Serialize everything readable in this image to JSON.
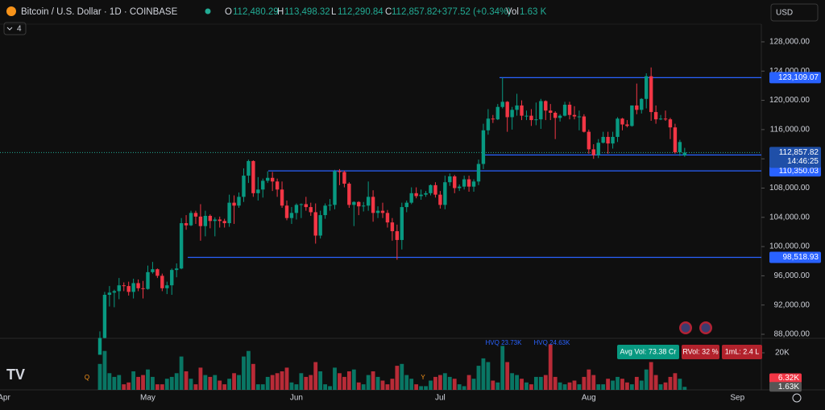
{
  "header": {
    "title": "Bitcoin / U.S. Dollar · 1D · COINBASE",
    "ohlc": [
      {
        "key": "O",
        "value": "112,480.29"
      },
      {
        "key": "H",
        "value": "113,498.32"
      },
      {
        "key": "L",
        "value": "112,290.84"
      },
      {
        "key": "C",
        "value": "112,857.82"
      }
    ],
    "change": "+377.52 (+0.34%)",
    "vol_key": "Vol",
    "vol": "1.63 K",
    "currency": "USD",
    "indicators": "4"
  },
  "badges": [
    "Avg Vol: 73.38 Cr",
    "RVol: 32 %",
    "1mL: 2.4 L"
  ],
  "annotations": [
    "HVQ 23.73K",
    "HVQ 24.63K",
    "Q",
    "Y"
  ],
  "chart_data": {
    "type": "candlestick",
    "up_color": "#089981",
    "down_color": "#f23645",
    "xlim": [
      -20.84,
      138
    ],
    "xticks": [
      {
        "value": -20,
        "label": "Apr"
      },
      {
        "value": 10,
        "label": "May"
      },
      {
        "value": 41,
        "label": "Jun"
      },
      {
        "value": 71,
        "label": "Jul"
      },
      {
        "value": 102,
        "label": "Aug"
      },
      {
        "value": 133,
        "label": "Sep"
      }
    ],
    "ylim": [
      87450,
      130420
    ],
    "yticks": [
      {
        "value": 128000,
        "label": "128,000.00"
      },
      {
        "value": 124000,
        "label": "124,000.00"
      },
      {
        "value": 120000,
        "label": "120,000.00"
      },
      {
        "value": 116000,
        "label": "116,000.00"
      },
      {
        "value": 112000,
        "label": "112,000.00"
      },
      {
        "value": 108000,
        "label": "108,000.00"
      },
      {
        "value": 104000,
        "label": "104,000.00"
      },
      {
        "value": 100000,
        "label": "100,000.00"
      },
      {
        "value": 96000,
        "label": "96,000.00"
      },
      {
        "value": 92000,
        "label": "92,000.00"
      },
      {
        "value": 88000,
        "label": "88,000.00"
      }
    ],
    "levels": [
      {
        "value": 123109.07,
        "label": "123,109.07"
      },
      {
        "value": 110350.03,
        "label": "110,350.03"
      },
      {
        "value": 98518.93,
        "label": "98,518.93"
      }
    ],
    "last_price": {
      "value": 112857.82,
      "label": "112,857.82",
      "countdown": "14:46:25"
    },
    "open": [
      85200,
      87500,
      93400,
      93700,
      93900,
      94700,
      94600,
      93800,
      95000,
      94300,
      94200,
      96500,
      96900,
      96000,
      94300,
      94700,
      96800,
      97000,
      103200,
      102900,
      104600,
      104100,
      102800,
      104200,
      103500,
      103700,
      103500,
      103200,
      106000,
      105600,
      106800,
      109700,
      111700,
      107300,
      107800,
      109000,
      109400,
      108900,
      107800,
      105600,
      103900,
      104600,
      105700,
      105800,
      105400,
      104700,
      101500,
      104300,
      105600,
      105700,
      110300,
      110200,
      108600,
      105700,
      106100,
      105500,
      105600,
      106800,
      104600,
      104900,
      104600,
      103300,
      102100,
      100900,
      105400,
      106000,
      107300,
      106900,
      107100,
      107300,
      108400,
      107100,
      105700,
      108800,
      109600,
      108000,
      108200,
      109200,
      108200,
      108900,
      111300,
      115900,
      117500,
      117400,
      119100,
      119800,
      117700,
      118700,
      119300,
      117900,
      117900,
      117300,
      117400,
      119900,
      118600,
      118300,
      117600,
      117900,
      119400,
      118000,
      117800,
      117800,
      115700,
      113300,
      112500,
      114200,
      115000,
      114100,
      115000,
      117500,
      116700,
      116500,
      119300,
      118700,
      120200,
      123300,
      118400,
      117400,
      117500,
      117400,
      116300,
      112900,
      112480.29
    ],
    "high": [
      88400,
      93800,
      94600,
      94100,
      95700,
      95100,
      95200,
      95600,
      95500,
      95300,
      97400,
      97900,
      97000,
      96300,
      95200,
      97000,
      97700,
      103900,
      104300,
      104900,
      104900,
      105800,
      104900,
      104400,
      104000,
      104100,
      103800,
      107100,
      107000,
      107400,
      110700,
      111900,
      111800,
      109500,
      109300,
      110300,
      110200,
      109300,
      108900,
      106300,
      105400,
      105900,
      105900,
      106800,
      106000,
      105900,
      104900,
      105900,
      106500,
      110500,
      110600,
      110400,
      108800,
      106200,
      106200,
      106100,
      108900,
      107700,
      105500,
      106000,
      105000,
      103900,
      103000,
      106000,
      106300,
      108100,
      108100,
      107800,
      107600,
      108500,
      108800,
      107600,
      109700,
      110000,
      109800,
      108500,
      109700,
      109700,
      109200,
      111900,
      116800,
      118800,
      118000,
      119500,
      123100,
      119900,
      119100,
      120900,
      120000,
      118600,
      118800,
      119700,
      120200,
      120000,
      119500,
      118500,
      118100,
      119800,
      119800,
      119200,
      118600,
      118100,
      116000,
      114000,
      114700,
      115700,
      115700,
      115700,
      117700,
      117600,
      117300,
      119300,
      122300,
      120300,
      123700,
      124500,
      119300,
      118000,
      118600,
      117600,
      116800,
      114600,
      113498.32
    ],
    "low": [
      85000,
      87100,
      91800,
      91700,
      92800,
      93900,
      93300,
      92900,
      93900,
      92900,
      94100,
      96300,
      95700,
      93900,
      93500,
      93400,
      95800,
      96900,
      102300,
      102800,
      103100,
      100800,
      101400,
      102500,
      101400,
      102600,
      102600,
      102700,
      103100,
      105300,
      106100,
      108700,
      106800,
      106300,
      106700,
      108700,
      107600,
      106800,
      105300,
      103600,
      103100,
      103700,
      103900,
      104900,
      104200,
      100400,
      101100,
      103800,
      104900,
      105100,
      108400,
      108100,
      105300,
      102800,
      104300,
      104800,
      104900,
      103400,
      103900,
      103900,
      102600,
      100800,
      98200,
      99600,
      104700,
      105800,
      106600,
      106400,
      106800,
      107000,
      106700,
      105200,
      105100,
      108300,
      107300,
      107600,
      107800,
      107500,
      107500,
      108400,
      110600,
      115300,
      116900,
      117300,
      118900,
      115700,
      116000,
      117900,
      117300,
      117300,
      116500,
      116600,
      116100,
      117300,
      117300,
      114700,
      117100,
      117800,
      117400,
      117400,
      115900,
      115600,
      112700,
      112000,
      112100,
      114100,
      112700,
      113400,
      114300,
      115900,
      116300,
      116400,
      118100,
      118200,
      118900,
      117200,
      116800,
      117300,
      117200,
      114700,
      112700,
      112400,
      112290.84
    ],
    "close": [
      87500,
      93400,
      93700,
      93900,
      94700,
      94600,
      93800,
      95000,
      94300,
      94200,
      96500,
      96900,
      96000,
      94300,
      94700,
      96800,
      97000,
      103200,
      102900,
      104600,
      104100,
      102800,
      104200,
      103500,
      103700,
      103500,
      103200,
      106000,
      105600,
      106800,
      109700,
      111700,
      107300,
      107800,
      109000,
      109400,
      108900,
      107800,
      105600,
      103900,
      104600,
      105700,
      105800,
      105400,
      104700,
      101500,
      104300,
      105600,
      105700,
      110300,
      110200,
      108600,
      105700,
      106100,
      105500,
      105600,
      106800,
      104600,
      104900,
      104600,
      103300,
      102100,
      100900,
      105400,
      106000,
      107300,
      106900,
      107100,
      107300,
      108400,
      107100,
      105700,
      108800,
      109600,
      108000,
      108200,
      109200,
      108200,
      108900,
      111300,
      115900,
      117500,
      117400,
      119100,
      119800,
      117700,
      118700,
      119300,
      117900,
      117900,
      117300,
      117400,
      119900,
      118600,
      118300,
      117600,
      117900,
      119400,
      118000,
      117800,
      117800,
      115700,
      113300,
      112500,
      114200,
      115000,
      114100,
      115000,
      117500,
      116700,
      116500,
      119300,
      118700,
      120200,
      123300,
      118400,
      117400,
      117500,
      117400,
      116300,
      112900,
      114300,
      112857.82
    ],
    "volume": {
      "ylim": [
        0,
        27830
      ],
      "yticks": [
        {
          "value": 20000,
          "label": "20K"
        }
      ],
      "badges": [
        {
          "value": 6320,
          "label": "6.32K"
        },
        {
          "value": 1630,
          "label": "1.63K"
        }
      ],
      "values": [
        14000,
        21000,
        9000,
        7000,
        8000,
        3000,
        4000,
        10000,
        7000,
        8000,
        11000,
        7000,
        3000,
        3000,
        6000,
        7000,
        9000,
        18000,
        10000,
        6000,
        3000,
        12000,
        8000,
        7000,
        8000,
        5000,
        3000,
        6000,
        9000,
        8000,
        18000,
        21000,
        14000,
        3000,
        3000,
        7000,
        8000,
        9000,
        10000,
        12000,
        4000,
        3000,
        9000,
        7000,
        8000,
        15000,
        10000,
        3000,
        2000,
        12000,
        9000,
        7000,
        10000,
        11000,
        4000,
        3000,
        8000,
        10000,
        7000,
        5000,
        3000,
        6000,
        13000,
        14000,
        8000,
        6000,
        3000,
        2000,
        2000,
        5000,
        7000,
        8000,
        9000,
        7000,
        6000,
        3000,
        2000,
        8000,
        6000,
        13000,
        17000,
        15000,
        5000,
        4000,
        23730,
        15000,
        9000,
        8000,
        6000,
        4000,
        3000,
        7000,
        7000,
        8000,
        24630,
        7000,
        4000,
        3000,
        4000,
        5000,
        3000,
        7000,
        11000,
        8000,
        3000,
        3000,
        6000,
        5000,
        7000,
        6000,
        4000,
        3000,
        7000,
        5000,
        11000,
        15000,
        8000,
        3000,
        4000,
        7000,
        9000,
        6000,
        1630
      ]
    }
  }
}
